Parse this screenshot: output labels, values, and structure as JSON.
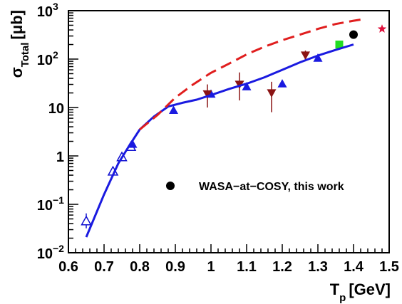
{
  "chart_data": {
    "type": "scatter",
    "title": "",
    "xlabel": "T",
    "xlabel_sub": "p",
    "xlabel_unit": "[GeV]",
    "ylabel": "σ",
    "ylabel_sub": "Total",
    "ylabel_unit": "[μb]",
    "xlim": [
      0.6,
      1.5
    ],
    "ylim": [
      0.01,
      1000
    ],
    "y_scale": "log",
    "grid": false,
    "x_ticks": [
      {
        "v": 0.6,
        "label": "0.6"
      },
      {
        "v": 0.7,
        "label": "0.7"
      },
      {
        "v": 0.8,
        "label": "0.8"
      },
      {
        "v": 0.9,
        "label": "0.9"
      },
      {
        "v": 1.0,
        "label": "1"
      },
      {
        "v": 1.1,
        "label": "1.1"
      },
      {
        "v": 1.2,
        "label": "1.2"
      },
      {
        "v": 1.3,
        "label": "1.3"
      },
      {
        "v": 1.4,
        "label": "1.4"
      },
      {
        "v": 1.5,
        "label": "1.5"
      }
    ],
    "y_ticks": [
      {
        "v": 0.01,
        "base": "10",
        "exp": "−2"
      },
      {
        "v": 0.1,
        "base": "10",
        "exp": "−1"
      },
      {
        "v": 1,
        "base": "1",
        "exp": ""
      },
      {
        "v": 10,
        "base": "10",
        "exp": ""
      },
      {
        "v": 100,
        "base": "10",
        "exp": "2"
      },
      {
        "v": 1000,
        "base": "10",
        "exp": "3"
      }
    ],
    "legend": {
      "placement": "center-right",
      "entries": [
        {
          "label": "WASA−at−COSY, this work",
          "marker": "circle",
          "color": "#000000"
        }
      ]
    },
    "series": [
      {
        "marker": "triangle-up-open",
        "color": "#1010d0",
        "points": [
          {
            "x": 0.65,
            "y": 0.045,
            "ylo": 0.032,
            "yhi": 0.065
          },
          {
            "x": 0.725,
            "y": 0.48
          },
          {
            "x": 0.75,
            "y": 0.95
          },
          {
            "x": 0.775,
            "y": 1.55
          }
        ]
      },
      {
        "marker": "triangle-up",
        "color": "#1a1ae0",
        "points": [
          {
            "x": 0.78,
            "y": 1.75
          },
          {
            "x": 0.895,
            "y": 8.8
          },
          {
            "x": 1.0,
            "y": 19
          },
          {
            "x": 1.1,
            "y": 27
          },
          {
            "x": 1.2,
            "y": 31
          },
          {
            "x": 1.3,
            "y": 105
          }
        ]
      },
      {
        "marker": "triangle-down",
        "color": "#8b1414",
        "points": [
          {
            "x": 0.99,
            "y": 19,
            "ylo": 10,
            "yhi": 30
          },
          {
            "x": 1.08,
            "y": 30,
            "ylo": 14,
            "yhi": 53
          },
          {
            "x": 1.17,
            "y": 20,
            "ylo": 8,
            "yhi": 34
          },
          {
            "x": 1.265,
            "y": 120,
            "ylo": 90,
            "yhi": 150
          }
        ]
      },
      {
        "marker": "square",
        "color": "#22dd22",
        "points": [
          {
            "x": 1.36,
            "y": 200
          }
        ]
      },
      {
        "marker": "circle",
        "color": "#000000",
        "points": [
          {
            "x": 1.4,
            "y": 320
          }
        ]
      },
      {
        "marker": "star",
        "color": "#e0103c",
        "points": [
          {
            "x": 1.48,
            "y": 420
          }
        ]
      },
      {
        "marker": "line",
        "color": "#1a1ae0",
        "points": [
          {
            "x": 0.65,
            "y": 0.021
          },
          {
            "x": 0.7,
            "y": 0.16
          },
          {
            "x": 0.74,
            "y": 0.7
          },
          {
            "x": 0.77,
            "y": 1.6
          },
          {
            "x": 0.8,
            "y": 3.5
          },
          {
            "x": 0.84,
            "y": 6.5
          },
          {
            "x": 0.88,
            "y": 10.5
          },
          {
            "x": 0.92,
            "y": 12.5
          },
          {
            "x": 0.96,
            "y": 14.5
          },
          {
            "x": 1.0,
            "y": 18
          },
          {
            "x": 1.05,
            "y": 24
          },
          {
            "x": 1.1,
            "y": 31
          },
          {
            "x": 1.15,
            "y": 42
          },
          {
            "x": 1.2,
            "y": 60
          },
          {
            "x": 1.25,
            "y": 86
          },
          {
            "x": 1.3,
            "y": 118
          },
          {
            "x": 1.35,
            "y": 155
          },
          {
            "x": 1.4,
            "y": 200
          }
        ]
      },
      {
        "marker": "dashed-line",
        "color": "#e01e1e",
        "points": [
          {
            "x": 0.8,
            "y": 3.5
          },
          {
            "x": 0.85,
            "y": 7
          },
          {
            "x": 0.9,
            "y": 16
          },
          {
            "x": 0.95,
            "y": 30
          },
          {
            "x": 1.0,
            "y": 52
          },
          {
            "x": 1.05,
            "y": 80
          },
          {
            "x": 1.1,
            "y": 125
          },
          {
            "x": 1.15,
            "y": 180
          },
          {
            "x": 1.2,
            "y": 245
          },
          {
            "x": 1.25,
            "y": 320
          },
          {
            "x": 1.3,
            "y": 420
          },
          {
            "x": 1.35,
            "y": 530
          },
          {
            "x": 1.4,
            "y": 620
          },
          {
            "x": 1.435,
            "y": 680
          }
        ]
      }
    ]
  }
}
